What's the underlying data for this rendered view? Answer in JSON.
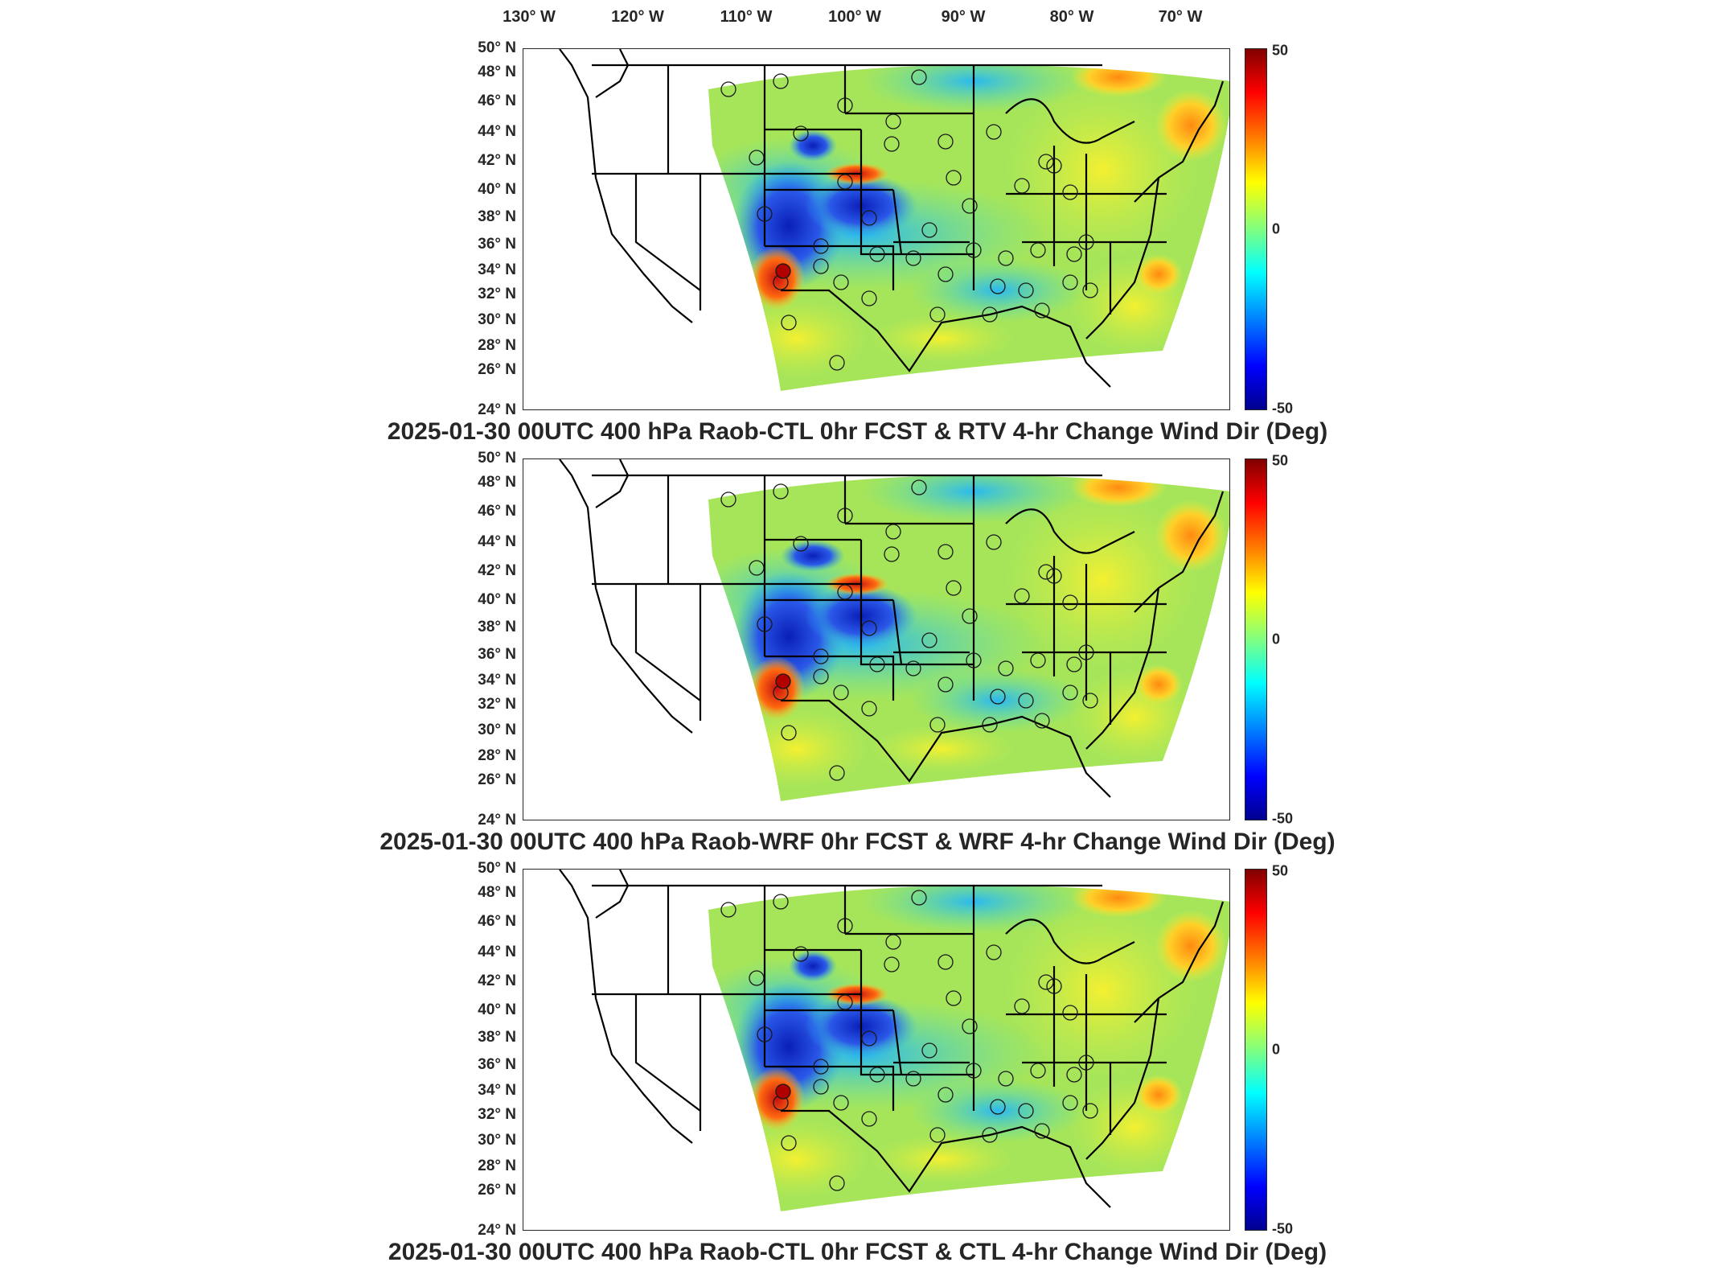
{
  "lon_labels": [
    "130° W",
    "120° W",
    "110° W",
    "100° W",
    "90° W",
    "80° W",
    "70° W"
  ],
  "lat_labels": [
    "50° N",
    "48° N",
    "46° N",
    "44° N",
    "42° N",
    "40° N",
    "38° N",
    "36° N",
    "34° N",
    "32° N",
    "30° N",
    "28° N",
    "26° N",
    "24° N"
  ],
  "colorbar": {
    "max": "50",
    "mid": "0",
    "min": "-50"
  },
  "panels": [
    {
      "title": "2025-01-30 00UTC 400 hPa Raob-CTL 0hr FCST & RTV 4-hr Change Wind Dir (Deg)"
    },
    {
      "title": "2025-01-30 00UTC 400 hPa Raob-WRF 0hr FCST & WRF 4-hr Change Wind Dir (Deg)"
    },
    {
      "title": "2025-01-30 00UTC 400 hPa Raob-CTL 0hr FCST & CTL 4-hr Change Wind Dir (Deg)"
    }
  ],
  "colors": {
    "blue_region": "#1f3fd6",
    "red_region": "#d61a10",
    "field_green": "#9de35a",
    "field_yellow": "#e6ef3c",
    "field_cyan": "#3fd6c8"
  },
  "station_icon": "open-circle-marker"
}
